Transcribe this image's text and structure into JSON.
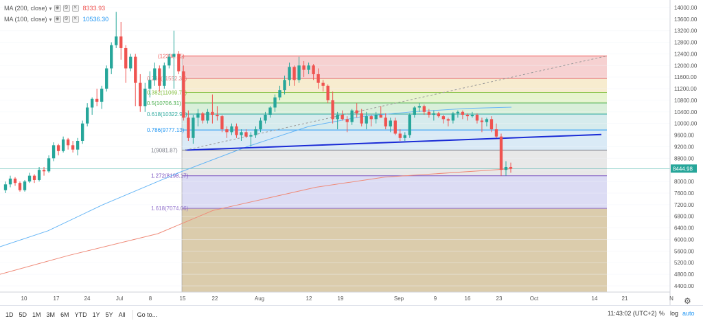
{
  "legend": [
    {
      "name": "MA (200, close)",
      "value": "8333.93",
      "color": "#ef5350"
    },
    {
      "name": "MA (100, close)",
      "value": "10536.30",
      "color": "#2196f3"
    }
  ],
  "legend_controls": {
    "eye": "◉",
    "settings": "⚙",
    "close": "✕"
  },
  "legend_caret": "▾",
  "fib_levels": [
    {
      "ratio": "",
      "price": 12330.75,
      "label": "(12330.75)",
      "fill": "#f5c9c9",
      "line": "#ef5350"
    },
    {
      "ratio": "0.236",
      "price": 11552.32,
      "label": "0.236(11552.32)",
      "fill": "#f6e9c7",
      "line": "#e57373"
    },
    {
      "ratio": "0.382",
      "price": 11069.71,
      "label": "0.382(11069.71)",
      "fill": "#e3f2c5",
      "line": "#8bc34a"
    },
    {
      "ratio": "0.5",
      "price": 10706.31,
      "label": "0.5(10706.31)",
      "fill": "#d2ecd3",
      "line": "#4caf50"
    },
    {
      "ratio": "0.618",
      "price": 10322.92,
      "label": "0.618(10322.92)",
      "fill": "#cfe8ea",
      "line": "#26a69a"
    },
    {
      "ratio": "0.786",
      "price": 9777.13,
      "label": "0.786(9777.13)",
      "fill": "#d4e6f5",
      "line": "#2196f3"
    },
    {
      "ratio": "1",
      "price": 9081.87,
      "label": "1(9081.87)",
      "fill": "#e4e4e4",
      "line": "#787b86"
    },
    {
      "ratio": "1.272",
      "price": 8198.17,
      "label": "1.272(8198.17)",
      "fill": "#d6d6f2",
      "line": "#7e57c2"
    },
    {
      "ratio": "1.618",
      "price": 7074.06,
      "label": "1.618(7074.06)",
      "fill": "#cdd8cf",
      "line": "#9575cd"
    }
  ],
  "chart_data": {
    "type": "candlestick",
    "y_axis": {
      "min": 4000,
      "max": 14000,
      "ticks": [
        4400,
        4800,
        5200,
        5600,
        6000,
        6400,
        6800,
        7200,
        7600,
        8000,
        8400,
        8800,
        9200,
        9600,
        10000,
        10400,
        10800,
        11200,
        11600,
        12000,
        12400,
        12800,
        13200,
        13600,
        14000
      ]
    },
    "x_axis_labels": [
      "10",
      "17",
      "24",
      "Jul",
      "8",
      "15",
      "22",
      "Aug",
      "12",
      "19",
      "Sep",
      "9",
      "16",
      "23",
      "Oct",
      "14",
      "21"
    ],
    "x_axis_truncated": "N",
    "last_price": "8444.98",
    "candles": [
      [
        7700,
        8000,
        7600,
        7900
      ],
      [
        7900,
        8200,
        7800,
        8100
      ],
      [
        8100,
        8150,
        7850,
        7950
      ],
      [
        7950,
        8000,
        7650,
        7700
      ],
      [
        7700,
        8050,
        7650,
        8000
      ],
      [
        8000,
        8300,
        7950,
        8200
      ],
      [
        8200,
        8250,
        7950,
        8050
      ],
      [
        8050,
        8500,
        8000,
        8400
      ],
      [
        8400,
        8500,
        8200,
        8350
      ],
      [
        8350,
        8900,
        8300,
        8800
      ],
      [
        8800,
        9350,
        8700,
        9250
      ],
      [
        9250,
        9300,
        8900,
        9050
      ],
      [
        9050,
        9550,
        9000,
        9450
      ],
      [
        9450,
        9500,
        9100,
        9250
      ],
      [
        9250,
        9400,
        9000,
        9100
      ],
      [
        9100,
        9500,
        8900,
        9400
      ],
      [
        9400,
        10100,
        9300,
        10000
      ],
      [
        10000,
        10700,
        9900,
        10550
      ],
      [
        10550,
        10900,
        10300,
        10850
      ],
      [
        10850,
        11200,
        10600,
        10750
      ],
      [
        10750,
        11300,
        10500,
        11200
      ],
      [
        11200,
        12000,
        11100,
        11900
      ],
      [
        11900,
        12800,
        11700,
        12700
      ],
      [
        12700,
        13850,
        12600,
        13000
      ],
      [
        13000,
        13500,
        12200,
        12600
      ],
      [
        12600,
        12700,
        11400,
        11900
      ],
      [
        11900,
        12400,
        11800,
        12300
      ],
      [
        12300,
        12400,
        10600,
        11400
      ],
      [
        11400,
        11700,
        10400,
        10600
      ],
      [
        10600,
        11400,
        10400,
        11200
      ],
      [
        11200,
        11800,
        10900,
        11500
      ],
      [
        11500,
        12100,
        11300,
        11900
      ],
      [
        11900,
        12000,
        11100,
        11300
      ],
      [
        11300,
        12100,
        11200,
        12000
      ],
      [
        12000,
        12400,
        11900,
        12300
      ],
      [
        12300,
        13200,
        11200,
        12400
      ],
      [
        12400,
        12500,
        11700,
        11800
      ],
      [
        11800,
        12000,
        10100,
        10200
      ],
      [
        10200,
        10450,
        9400,
        9500
      ],
      [
        9500,
        10300,
        9300,
        10200
      ],
      [
        10200,
        10500,
        9900,
        10350
      ],
      [
        10350,
        10400,
        10000,
        10100
      ],
      [
        10100,
        10500,
        10000,
        10400
      ],
      [
        10400,
        11000,
        10000,
        10300
      ],
      [
        10300,
        10600,
        10100,
        10250
      ],
      [
        10250,
        10300,
        9700,
        9800
      ],
      [
        9800,
        9900,
        9500,
        9700
      ],
      [
        9700,
        10000,
        9600,
        9900
      ],
      [
        9900,
        10000,
        9500,
        9600
      ],
      [
        9600,
        9800,
        9400,
        9700
      ],
      [
        9700,
        9800,
        9500,
        9550
      ],
      [
        9550,
        9700,
        9200,
        9600
      ],
      [
        9600,
        9900,
        9500,
        9800
      ],
      [
        9800,
        10200,
        9700,
        10100
      ],
      [
        10100,
        10400,
        10000,
        10300
      ],
      [
        10300,
        10600,
        10200,
        10550
      ],
      [
        10550,
        11000,
        10400,
        10900
      ],
      [
        10900,
        11300,
        10800,
        11150
      ],
      [
        11150,
        11650,
        11000,
        11500
      ],
      [
        11500,
        12100,
        11300,
        11950
      ],
      [
        11950,
        12000,
        11300,
        11500
      ],
      [
        11500,
        12300,
        11400,
        12000
      ],
      [
        12000,
        12150,
        11600,
        11850
      ],
      [
        11850,
        12100,
        11700,
        12000
      ],
      [
        12000,
        12050,
        11500,
        11700
      ],
      [
        11700,
        11900,
        11200,
        11400
      ],
      [
        11400,
        11500,
        11100,
        11300
      ],
      [
        11300,
        11350,
        10700,
        10800
      ],
      [
        10800,
        11100,
        10000,
        10150
      ],
      [
        10150,
        10400,
        9800,
        10300
      ],
      [
        10300,
        10450,
        10100,
        10150
      ],
      [
        10150,
        10250,
        9700,
        10050
      ],
      [
        10050,
        10500,
        9950,
        10450
      ],
      [
        10450,
        10700,
        10200,
        10350
      ],
      [
        10350,
        10500,
        9900,
        10000
      ],
      [
        10000,
        10400,
        9800,
        10250
      ],
      [
        10250,
        10300,
        9900,
        10150
      ],
      [
        10150,
        10400,
        10000,
        10300
      ],
      [
        10300,
        10600,
        10200,
        10200
      ],
      [
        10200,
        10350,
        9800,
        9900
      ],
      [
        9900,
        10200,
        9700,
        10100
      ],
      [
        10100,
        10200,
        9600,
        9650
      ],
      [
        9650,
        9800,
        9400,
        9500
      ],
      [
        9500,
        9700,
        9400,
        9600
      ],
      [
        9600,
        10350,
        9500,
        10300
      ],
      [
        10300,
        10600,
        10200,
        10550
      ],
      [
        10550,
        10700,
        10400,
        10600
      ],
      [
        10600,
        10650,
        10300,
        10400
      ],
      [
        10400,
        10500,
        10200,
        10300
      ],
      [
        10300,
        10450,
        10100,
        10350
      ],
      [
        10350,
        10400,
        10200,
        10250
      ],
      [
        10250,
        10300,
        10000,
        10150
      ],
      [
        10150,
        10200,
        9900,
        10100
      ],
      [
        10100,
        10400,
        10000,
        10350
      ],
      [
        10350,
        10450,
        10200,
        10400
      ],
      [
        10400,
        10450,
        10150,
        10300
      ],
      [
        10300,
        10350,
        10100,
        10250
      ],
      [
        10250,
        10400,
        10200,
        10300
      ],
      [
        10300,
        10350,
        10000,
        10100
      ],
      [
        10100,
        10200,
        9700,
        10050
      ],
      [
        10050,
        10200,
        9900,
        10150
      ],
      [
        10150,
        10250,
        9700,
        9800
      ],
      [
        9800,
        10000,
        9500,
        9550
      ],
      [
        9550,
        9650,
        8200,
        8400
      ],
      [
        8400,
        8700,
        8200,
        8500
      ],
      [
        8500,
        8650,
        8300,
        8440
      ]
    ],
    "ma200": [
      [
        0,
        4800
      ],
      [
        100,
        5450
      ],
      [
        230,
        6200
      ],
      [
        310,
        7000
      ],
      [
        460,
        7800
      ],
      [
        560,
        8150
      ],
      [
        745,
        8440
      ]
    ],
    "ma100": [
      [
        0,
        5750
      ],
      [
        70,
        6300
      ],
      [
        150,
        7200
      ],
      [
        260,
        8300
      ],
      [
        360,
        9200
      ],
      [
        450,
        9900
      ],
      [
        530,
        10250
      ],
      [
        600,
        10400
      ],
      [
        680,
        10520
      ],
      [
        745,
        10560
      ]
    ],
    "trendline_solid": [
      [
        270,
        9080
      ],
      [
        876,
        9620
      ]
    ],
    "trendline_dashed": [
      [
        270,
        9080
      ],
      [
        884,
        12330
      ]
    ]
  },
  "bottom": {
    "ranges": [
      "1D",
      "5D",
      "1M",
      "3M",
      "6M",
      "YTD",
      "1Y",
      "5Y",
      "All"
    ],
    "goto": "Go to...",
    "clock": "11:43:02 (UTC+2)",
    "pct": "%",
    "log": "log",
    "auto": "auto"
  },
  "settings_icon": "⚙",
  "colors": {
    "up": "#26a69a",
    "down": "#ef5350"
  }
}
